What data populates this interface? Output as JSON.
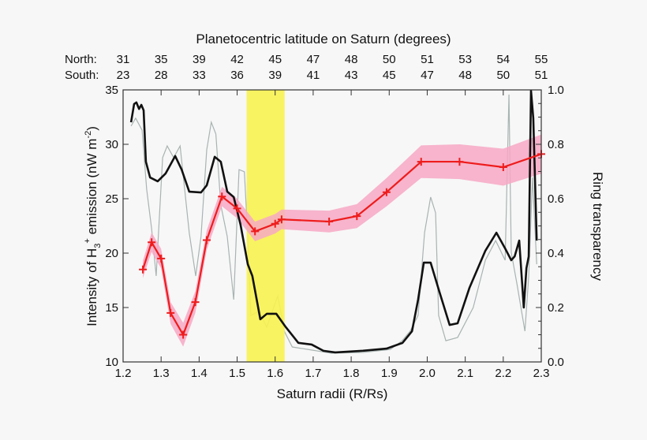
{
  "chart_data": {
    "type": "line",
    "top_axis": {
      "title": "Planetocentric latitude on Saturn (degrees)",
      "north_label": "North:",
      "south_label": "South:",
      "north": [
        "31",
        "35",
        "39",
        "42",
        "45",
        "47",
        "48",
        "50",
        "51",
        "53",
        "54",
        "55"
      ],
      "south": [
        "23",
        "28",
        "33",
        "36",
        "39",
        "41",
        "43",
        "45",
        "47",
        "48",
        "50",
        "51"
      ]
    },
    "xlabel": "Saturn radii (R/Rs)",
    "ylabel": "Intensity  of  H3+ emission (nW m-2)",
    "ylabel_parts": {
      "a": "Intensity  of  H",
      "sub": "3",
      "sup": "+",
      "b": " emission (nW m",
      "sup2": "-2",
      "c": ")"
    },
    "y2label": "Ring transparency",
    "xlim": [
      1.2,
      2.3
    ],
    "ylim": [
      10,
      35
    ],
    "y2lim": [
      0,
      1
    ],
    "xticks": [
      "1.2",
      "1.3",
      "1.4",
      "1.5",
      "1.6",
      "1.7",
      "1.8",
      "1.9",
      "2.0",
      "2.1",
      "2.2",
      "2.3"
    ],
    "yticks": [
      "10",
      "15",
      "20",
      "25",
      "30",
      "35"
    ],
    "y2ticks": [
      "0.0",
      "0.2",
      "0.4",
      "0.6",
      "0.8",
      "1.0"
    ],
    "highlight_band": {
      "x": [
        1.525,
        1.625
      ],
      "color": "#f7f250"
    },
    "colors": {
      "emission": "#ee1c1c",
      "band": "#f7a8c4",
      "band_highlight": "#f5a040",
      "transparency": "#111111",
      "transparency_raw": "#a8b4b2"
    },
    "emission": {
      "x": [
        1.252,
        1.275,
        1.3,
        1.325,
        1.358,
        1.39,
        1.42,
        1.46,
        1.5,
        1.547,
        1.6,
        1.617,
        1.742,
        1.815,
        1.893,
        1.984,
        2.085,
        2.2,
        2.3
      ],
      "y": [
        18.5,
        21.0,
        19.5,
        14.5,
        12.5,
        15.5,
        21.2,
        25.2,
        24.1,
        22.0,
        22.7,
        23.1,
        22.9,
        23.4,
        25.6,
        28.4,
        28.4,
        27.9,
        29.1
      ],
      "err": [
        0.8,
        0.9,
        0.9,
        1.0,
        1.1,
        1.0,
        0.9,
        0.9,
        0.9,
        0.9,
        0.9,
        0.9,
        1.0,
        1.1,
        1.3,
        1.5,
        1.6,
        1.7,
        1.8
      ]
    },
    "transparency_smooth": {
      "x": [
        1.221,
        1.229,
        1.235,
        1.242,
        1.248,
        1.254,
        1.26,
        1.271,
        1.291,
        1.312,
        1.337,
        1.354,
        1.374,
        1.405,
        1.42,
        1.441,
        1.457,
        1.474,
        1.491,
        1.509,
        1.528,
        1.54,
        1.561,
        1.578,
        1.603,
        1.628,
        1.661,
        1.696,
        1.727,
        1.758,
        1.831,
        1.893,
        1.935,
        1.96,
        1.976,
        1.991,
        2.009,
        2.032,
        2.059,
        2.08,
        2.111,
        2.153,
        2.182,
        2.205,
        2.221,
        2.23,
        2.242,
        2.254,
        2.261,
        2.267,
        2.273,
        2.279,
        2.288
      ],
      "y": [
        0.881,
        0.948,
        0.954,
        0.93,
        0.945,
        0.925,
        0.736,
        0.678,
        0.664,
        0.693,
        0.757,
        0.707,
        0.626,
        0.623,
        0.649,
        0.754,
        0.736,
        0.626,
        0.606,
        0.504,
        0.359,
        0.316,
        0.157,
        0.177,
        0.177,
        0.128,
        0.07,
        0.064,
        0.041,
        0.035,
        0.041,
        0.049,
        0.07,
        0.113,
        0.229,
        0.365,
        0.365,
        0.258,
        0.136,
        0.142,
        0.272,
        0.409,
        0.475,
        0.417,
        0.374,
        0.388,
        0.446,
        0.2,
        0.345,
        0.388,
        0.997,
        0.896,
        0.446
      ]
    },
    "transparency_raw": {
      "x": [
        1.221,
        1.233,
        1.25,
        1.262,
        1.275,
        1.287,
        1.304,
        1.316,
        1.333,
        1.35,
        1.374,
        1.391,
        1.405,
        1.42,
        1.432,
        1.444,
        1.457,
        1.474,
        1.491,
        1.505,
        1.519,
        1.528,
        1.536,
        1.557,
        1.578,
        1.607,
        1.624,
        1.645,
        1.686,
        1.748,
        1.831,
        1.903,
        1.934,
        1.955,
        1.976,
        1.993,
        2.009,
        2.022,
        2.03,
        2.049,
        2.08,
        2.121,
        2.153,
        2.18,
        2.205,
        2.215,
        2.221,
        2.236,
        2.257,
        2.267,
        2.277,
        2.288
      ],
      "y": [
        0.867,
        0.896,
        0.852,
        0.635,
        0.49,
        0.316,
        0.751,
        0.794,
        0.751,
        0.794,
        0.475,
        0.316,
        0.461,
        0.78,
        0.881,
        0.838,
        0.577,
        0.461,
        0.229,
        0.707,
        0.699,
        0.461,
        0.171,
        0.186,
        0.128,
        0.243,
        0.113,
        0.055,
        0.046,
        0.032,
        0.035,
        0.046,
        0.078,
        0.113,
        0.171,
        0.475,
        0.606,
        0.548,
        0.171,
        0.078,
        0.09,
        0.2,
        0.374,
        0.446,
        0.374,
        0.983,
        0.403,
        0.287,
        0.113,
        0.316,
        0.678,
        0.359
      ]
    }
  }
}
